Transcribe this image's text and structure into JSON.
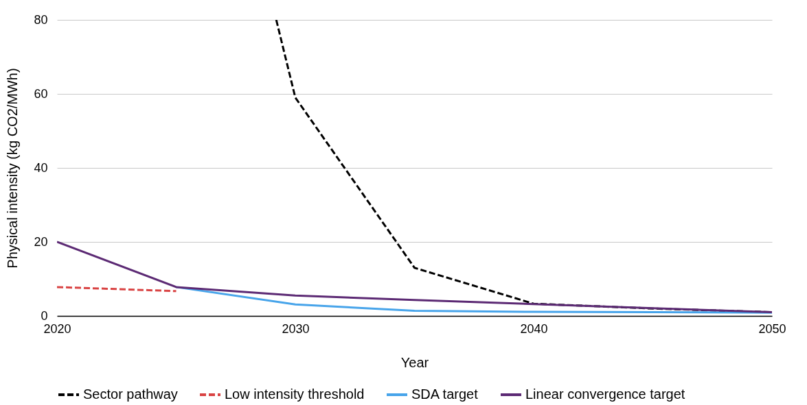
{
  "chart_data": {
    "type": "line",
    "xlabel": "Year",
    "ylabel": "Physical intensity (kg CO2/MWh)",
    "x": [
      2020,
      2025,
      2030,
      2035,
      2040,
      2045,
      2050
    ],
    "series": [
      {
        "name": "Sector pathway",
        "color": "#000000",
        "line_style": "dashed",
        "x": [
          2029.2,
          2030,
          2035,
          2040,
          2045,
          2050
        ],
        "values": [
          80,
          59,
          13,
          3.3,
          2,
          1
        ]
      },
      {
        "name": "Low intensity threshold",
        "color": "#d94343",
        "line_style": "dashed",
        "x": [
          2020,
          2025
        ],
        "values": [
          7.8,
          6.7
        ]
      },
      {
        "name": "SDA target",
        "color": "#47a4ea",
        "line_style": "solid",
        "x": [
          2025,
          2030,
          2035,
          2040,
          2045,
          2050
        ],
        "values": [
          7.8,
          3.1,
          1.4,
          1.1,
          1,
          0.9
        ]
      },
      {
        "name": "Linear convergence target",
        "color": "#5c2a74",
        "line_style": "solid",
        "values": [
          20,
          7.8,
          5.5,
          4.3,
          3.2,
          2.1,
          1
        ]
      }
    ],
    "xlim": [
      2020,
      2050
    ],
    "xticks": [
      2020,
      2030,
      2040,
      2050
    ],
    "ylim": [
      0,
      80
    ],
    "yticks": [
      0,
      20,
      40,
      60,
      80
    ],
    "grid": "y",
    "legend": "bottom",
    "marker": "none"
  }
}
